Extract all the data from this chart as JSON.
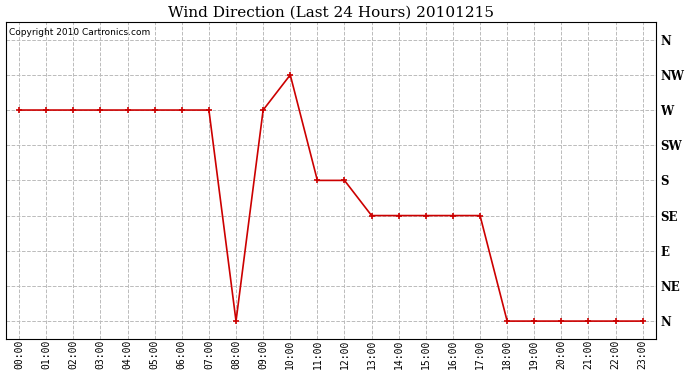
{
  "title": "Wind Direction (Last 24 Hours) 20101215",
  "copyright_text": "Copyright 2010 Cartronics.com",
  "line_color": "#cc0000",
  "bg_color": "#ffffff",
  "plot_bg_color": "#ffffff",
  "marker": "+",
  "marker_size": 5,
  "line_width": 1.2,
  "ytick_labels": [
    "N",
    "NE",
    "E",
    "SE",
    "S",
    "SW",
    "W",
    "NW",
    "N"
  ],
  "ytick_values": [
    0,
    1,
    2,
    3,
    4,
    5,
    6,
    7,
    8
  ],
  "hours": [
    0,
    1,
    2,
    3,
    4,
    5,
    6,
    7,
    8,
    9,
    10,
    11,
    12,
    13,
    14,
    15,
    16,
    17,
    18,
    19,
    20,
    21,
    22,
    23
  ],
  "wind_dir_values": [
    6,
    6,
    6,
    6,
    6,
    6,
    6,
    6,
    0,
    6,
    7,
    4,
    4,
    3,
    3,
    3,
    3,
    3,
    0,
    0,
    0,
    0,
    0,
    0
  ],
  "xtick_labels": [
    "00:00",
    "01:00",
    "02:00",
    "03:00",
    "04:00",
    "05:00",
    "06:00",
    "07:00",
    "08:00",
    "09:00",
    "10:00",
    "11:00",
    "12:00",
    "13:00",
    "14:00",
    "15:00",
    "16:00",
    "17:00",
    "18:00",
    "19:00",
    "20:00",
    "21:00",
    "22:00",
    "23:00"
  ],
  "grid_color": "#bbbbbb",
  "grid_style": "--",
  "title_fontsize": 11,
  "axis_fontsize": 7,
  "ylabel_fontsize": 8.5,
  "fig_width": 6.9,
  "fig_height": 3.75,
  "dpi": 100
}
